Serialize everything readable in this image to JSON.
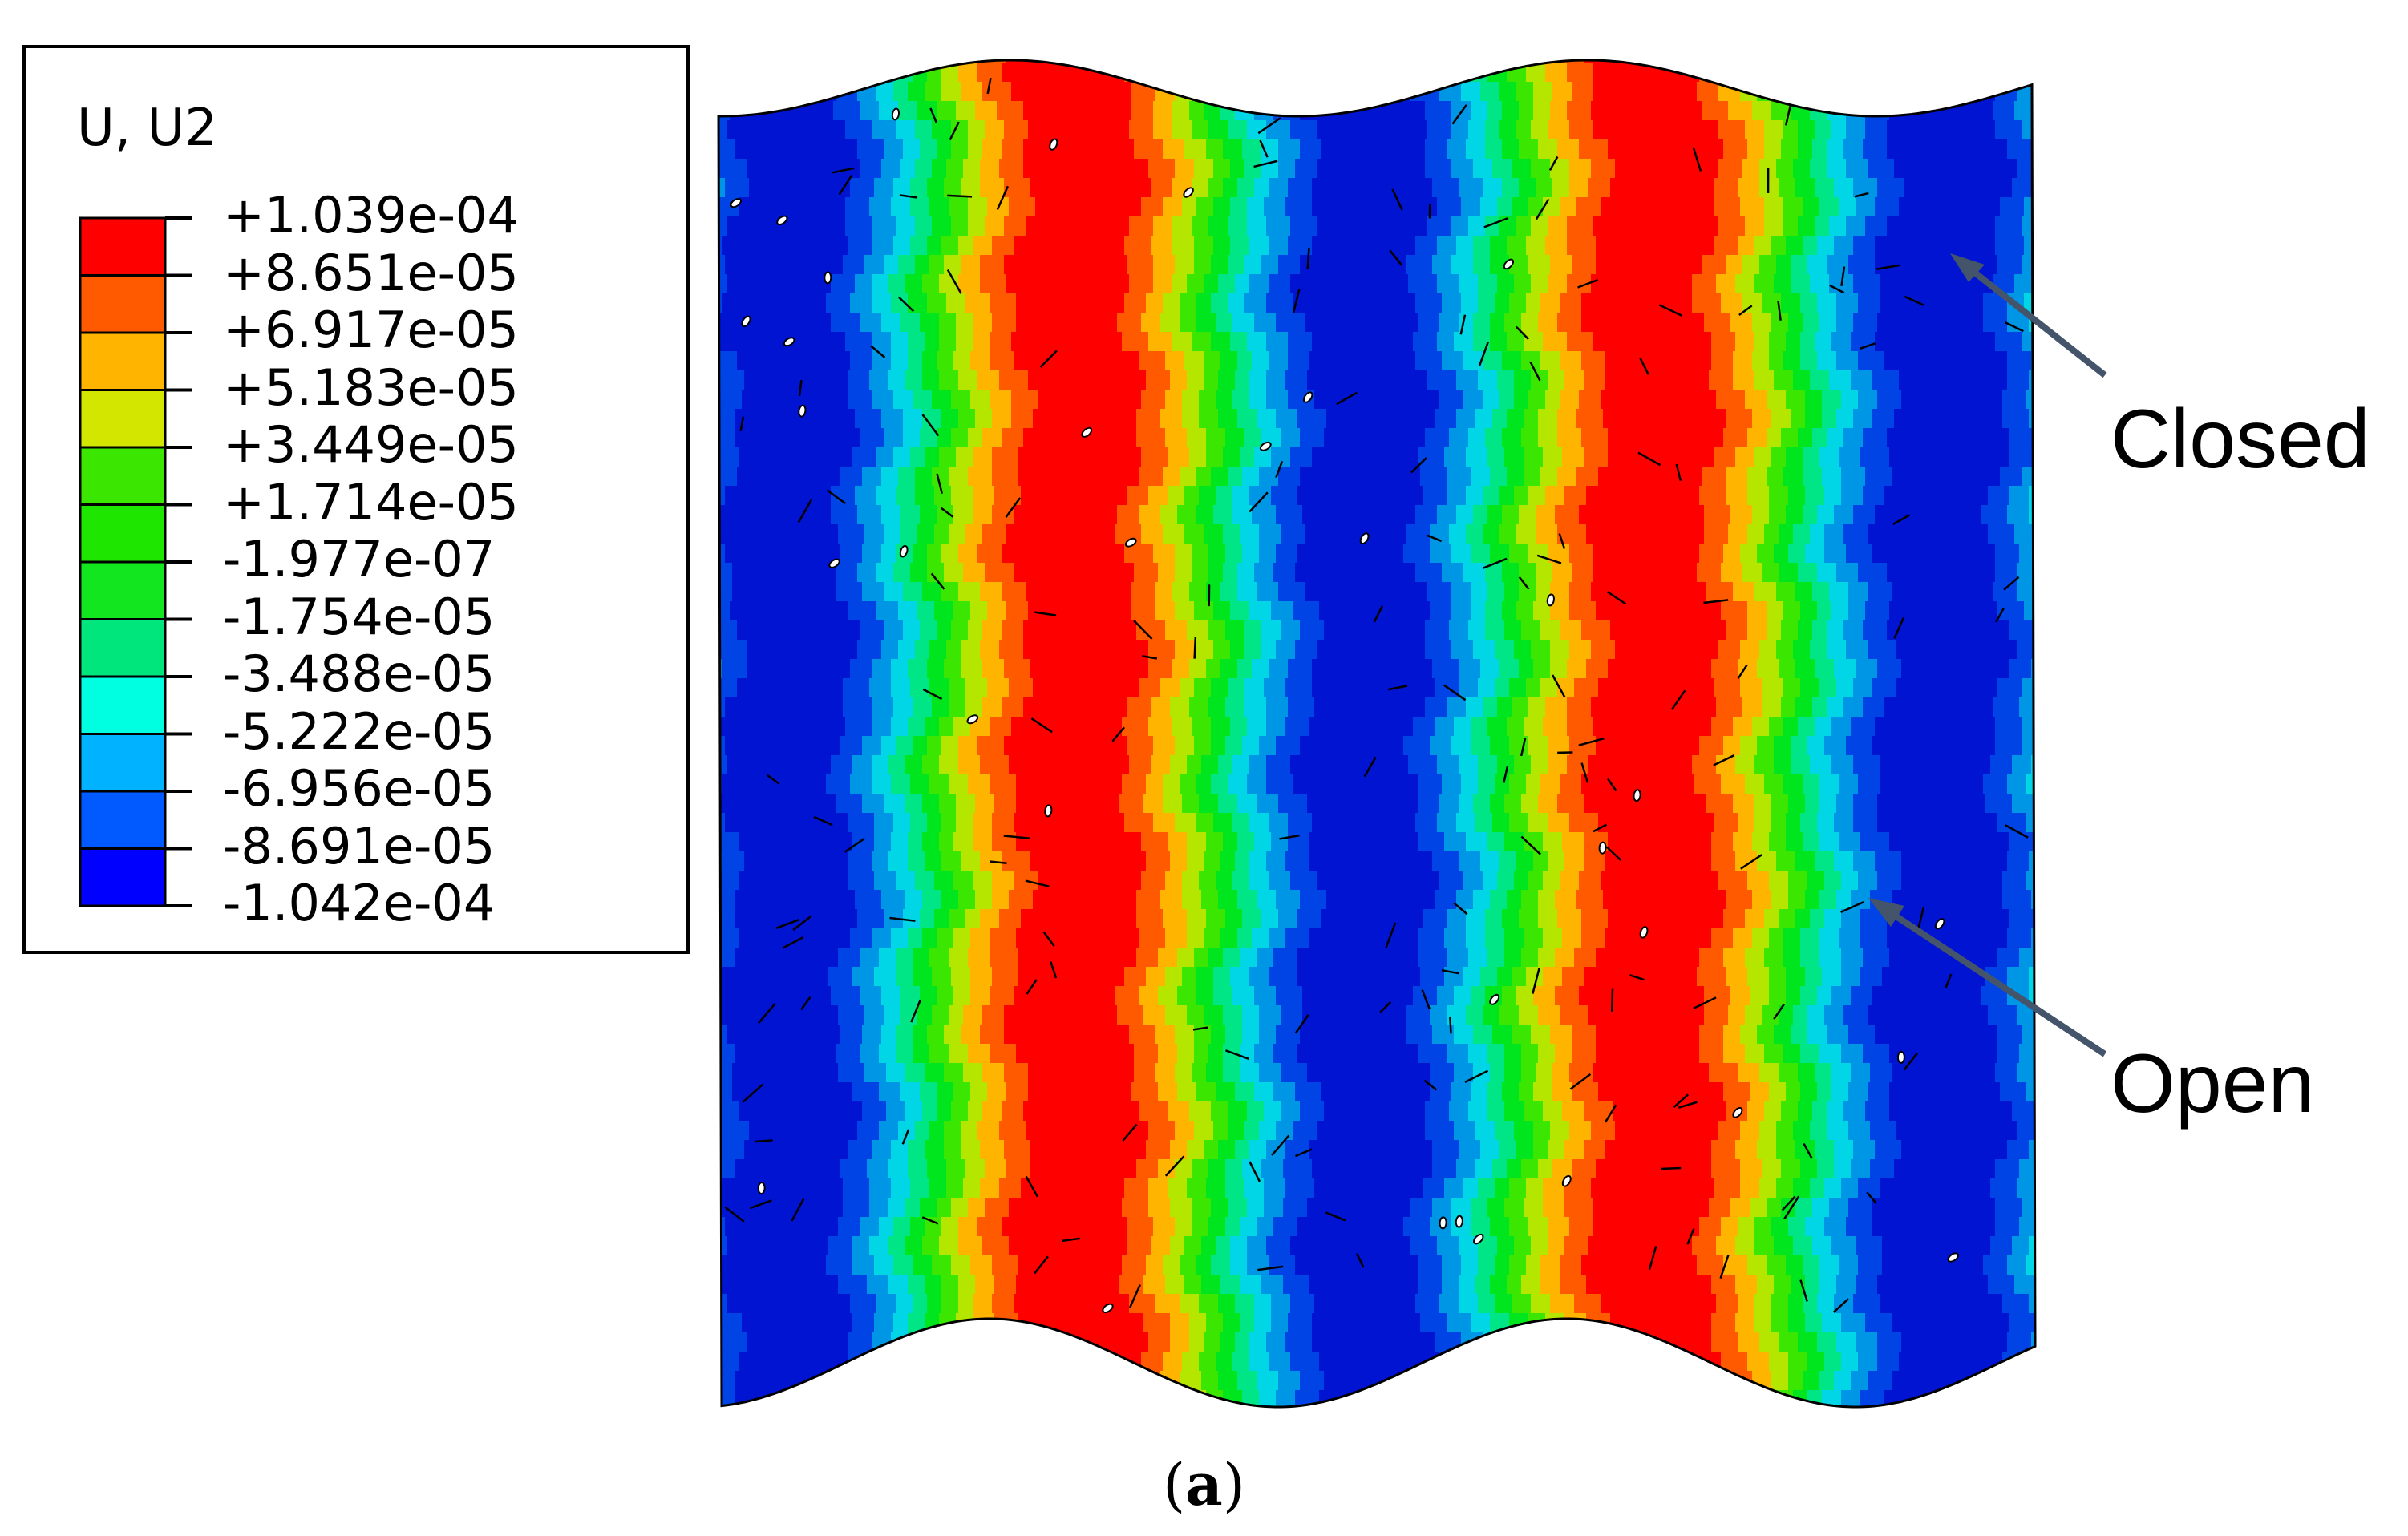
{
  "legend": {
    "title": "U, U2",
    "entries": [
      {
        "label": "+1.039e-04",
        "color": "#ff0000"
      },
      {
        "label": "+8.651e-05",
        "color": "#ff5a00"
      },
      {
        "label": "+6.917e-05",
        "color": "#ffb400"
      },
      {
        "label": "+5.183e-05",
        "color": "#d2e600"
      },
      {
        "label": "+3.449e-05",
        "color": "#3be600"
      },
      {
        "label": "+1.714e-05",
        "color": "#1ee600"
      },
      {
        "label": "-1.977e-07",
        "color": "#12e61e"
      },
      {
        "label": "-1.754e-05",
        "color": "#00e67c"
      },
      {
        "label": "-3.488e-05",
        "color": "#00ffe0"
      },
      {
        "label": "-5.222e-05",
        "color": "#00b2ff"
      },
      {
        "label": "-6.956e-05",
        "color": "#005aff"
      },
      {
        "label": "-8.691e-05",
        "color": "#0000ff"
      },
      {
        "label": "-1.042e-04",
        "color": ""
      }
    ]
  },
  "contour": {
    "stripe_sequence": [
      "#0014d2",
      "#0044e6",
      "#0096e6",
      "#00d6e6",
      "#00e686",
      "#00e61e",
      "#3be600",
      "#b4e600",
      "#ffb400",
      "#ff5a00",
      "#ff0000"
    ],
    "crack_color": "#000000"
  },
  "annotations": {
    "closed_label": "Closed",
    "open_label": "Open",
    "arrow_color": "#44546a"
  },
  "caption": {
    "open_paren": "(",
    "letter": "a",
    "close_paren": ")"
  }
}
